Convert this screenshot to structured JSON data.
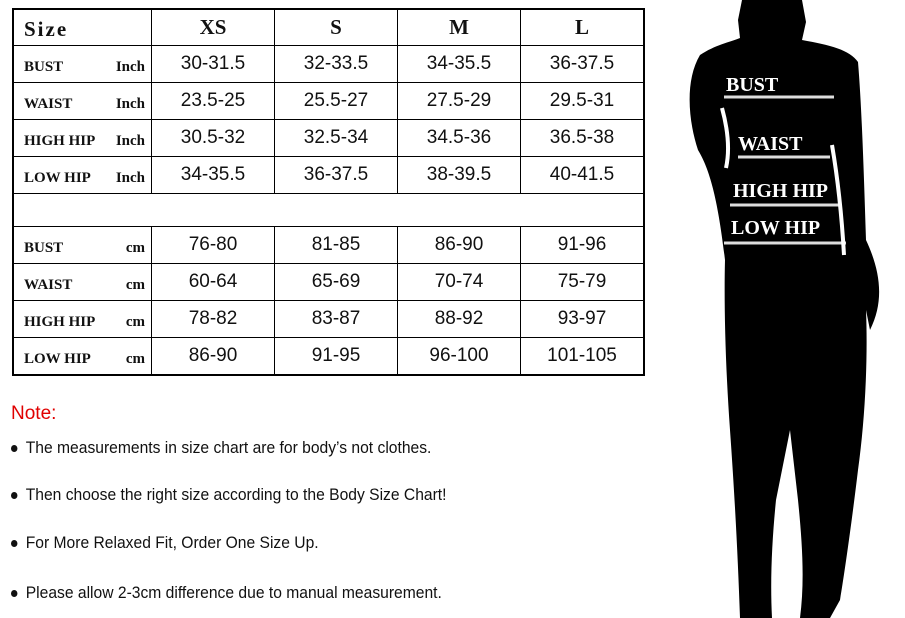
{
  "table": {
    "header": {
      "label": "Size",
      "sizes": [
        "XS",
        "S",
        "M",
        "L"
      ]
    },
    "inch_rows": [
      {
        "name": "BUST",
        "unit": "Inch",
        "values": [
          "30-31.5",
          "32-33.5",
          "34-35.5",
          "36-37.5"
        ]
      },
      {
        "name": "WAIST",
        "unit": "Inch",
        "values": [
          "23.5-25",
          "25.5-27",
          "27.5-29",
          "29.5-31"
        ]
      },
      {
        "name": "HIGH HIP",
        "unit": "Inch",
        "values": [
          "30.5-32",
          "32.5-34",
          "34.5-36",
          "36.5-38"
        ]
      },
      {
        "name": "LOW HIP",
        "unit": "Inch",
        "values": [
          "34-35.5",
          "36-37.5",
          "38-39.5",
          "40-41.5"
        ]
      }
    ],
    "cm_rows": [
      {
        "name": "BUST",
        "unit": "cm",
        "values": [
          "76-80",
          "81-85",
          "86-90",
          "91-96"
        ]
      },
      {
        "name": "WAIST",
        "unit": "cm",
        "values": [
          "60-64",
          "65-69",
          "70-74",
          "75-79"
        ]
      },
      {
        "name": "HIGH HIP",
        "unit": "cm",
        "values": [
          "78-82",
          "83-87",
          "88-92",
          "93-97"
        ]
      },
      {
        "name": "LOW HIP",
        "unit": "cm",
        "values": [
          "86-90",
          "91-95",
          "96-100",
          "101-105"
        ]
      }
    ]
  },
  "notes": {
    "title": "Note:",
    "title_color": "#e00000",
    "items": [
      "The measurements in size chart are for body’s not clothes.",
      "Then choose the right size according to the Body Size Chart!",
      "For More Relaxed Fit, Order One Size Up.",
      "Please allow 2-3cm difference due to manual measurement."
    ]
  },
  "silhouette": {
    "labels": [
      "BUST",
      "WAIST",
      "HIGH HIP",
      "LOW HIP"
    ]
  }
}
